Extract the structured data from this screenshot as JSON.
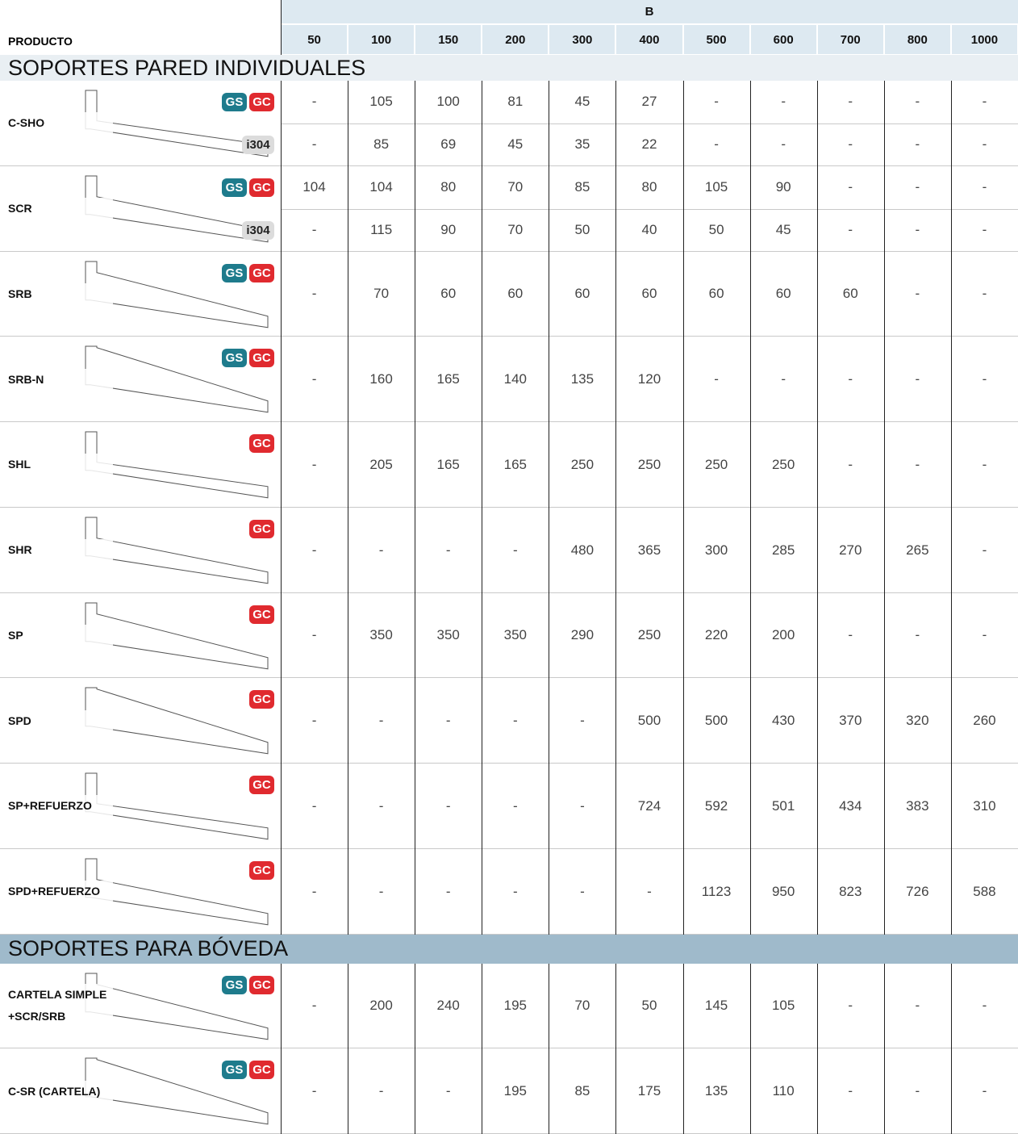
{
  "header": {
    "group_label": "B",
    "product_label": "PRODUCTO",
    "columns": [
      50,
      100,
      150,
      200,
      300,
      400,
      500,
      600,
      700,
      800,
      1000
    ]
  },
  "sections": [
    {
      "title": "SOPORTES PARED INDIVIDUALES",
      "products": [
        {
          "name": [
            "C-SHO"
          ],
          "rows": [
            {
              "badges": [
                "GS",
                "GC"
              ],
              "values": [
                "-",
                105,
                100,
                81,
                45,
                27,
                "-",
                "-",
                "-",
                "-",
                "-"
              ]
            },
            {
              "badges": [
                "i304"
              ],
              "values": [
                "-",
                85,
                69,
                45,
                35,
                22,
                "-",
                "-",
                "-",
                "-",
                "-"
              ]
            }
          ]
        },
        {
          "name": [
            "SCR"
          ],
          "rows": [
            {
              "badges": [
                "GS",
                "GC"
              ],
              "values": [
                104,
                104,
                80,
                70,
                85,
                80,
                105,
                90,
                "-",
                "-",
                "-"
              ]
            },
            {
              "badges": [
                "i304"
              ],
              "values": [
                "-",
                115,
                90,
                70,
                50,
                40,
                50,
                45,
                "-",
                "-",
                "-"
              ]
            }
          ]
        },
        {
          "name": [
            "SRB"
          ],
          "rows": [
            {
              "badges": [
                "GS",
                "GC"
              ],
              "values": [
                "-",
                70,
                60,
                60,
                60,
                60,
                60,
                60,
                60,
                "-",
                "-"
              ]
            }
          ]
        },
        {
          "name": [
            "SRB-N"
          ],
          "rows": [
            {
              "badges": [
                "GS",
                "GC"
              ],
              "values": [
                "-",
                160,
                165,
                140,
                135,
                120,
                "-",
                "-",
                "-",
                "-",
                "-"
              ]
            }
          ]
        },
        {
          "name": [
            "SHL"
          ],
          "rows": [
            {
              "badges": [
                "GC"
              ],
              "values": [
                "-",
                205,
                165,
                165,
                250,
                250,
                250,
                250,
                "-",
                "-",
                "-"
              ]
            }
          ]
        },
        {
          "name": [
            "SHR"
          ],
          "rows": [
            {
              "badges": [
                "GC"
              ],
              "values": [
                "-",
                "-",
                "-",
                "-",
                480,
                365,
                300,
                285,
                270,
                265,
                "-"
              ]
            }
          ]
        },
        {
          "name": [
            "SP"
          ],
          "rows": [
            {
              "badges": [
                "GC"
              ],
              "values": [
                "-",
                350,
                350,
                350,
                290,
                250,
                220,
                200,
                "-",
                "-",
                "-"
              ]
            }
          ]
        },
        {
          "name": [
            "SPD"
          ],
          "rows": [
            {
              "badges": [
                "GC"
              ],
              "values": [
                "-",
                "-",
                "-",
                "-",
                "-",
                500,
                500,
                430,
                370,
                320,
                260
              ]
            }
          ]
        },
        {
          "name": [
            "SP+REFUERZO"
          ],
          "rows": [
            {
              "badges": [
                "GC"
              ],
              "values": [
                "-",
                "-",
                "-",
                "-",
                "-",
                724,
                592,
                501,
                434,
                383,
                310
              ]
            }
          ]
        },
        {
          "name": [
            "SPD+REFUERZO"
          ],
          "rows": [
            {
              "badges": [
                "GC"
              ],
              "values": [
                "-",
                "-",
                "-",
                "-",
                "-",
                "-",
                1123,
                950,
                823,
                726,
                588
              ]
            }
          ]
        }
      ]
    },
    {
      "title": "SOPORTES PARA BÓVEDA",
      "products": [
        {
          "name": [
            "CARTELA SIMPLE",
            "+SCR/SRB"
          ],
          "rows": [
            {
              "badges": [
                "GS",
                "GC"
              ],
              "values": [
                "-",
                200,
                240,
                195,
                70,
                50,
                145,
                105,
                "-",
                "-",
                "-"
              ]
            }
          ]
        },
        {
          "name": [
            "C-SR (CARTELA)"
          ],
          "rows": [
            {
              "badges": [
                "GS",
                "GC"
              ],
              "values": [
                "-",
                "-",
                "-",
                195,
                85,
                175,
                135,
                110,
                "-",
                "-",
                "-"
              ]
            }
          ]
        }
      ]
    }
  ]
}
